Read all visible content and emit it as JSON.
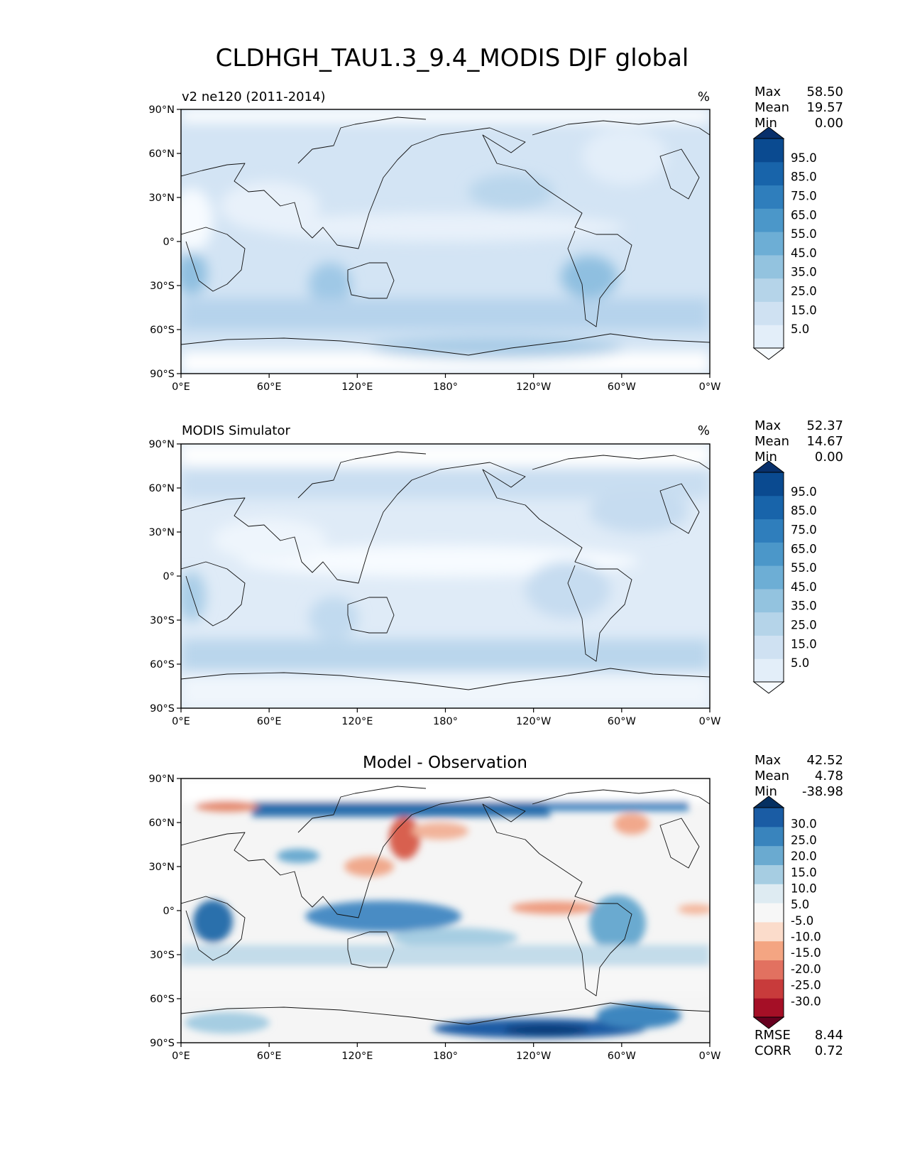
{
  "figure": {
    "title": "CLDHGH_TAU1.3_9.4_MODIS DJF global"
  },
  "axes": {
    "lon_ticks": [
      "0°E",
      "60°E",
      "120°E",
      "180°",
      "120°W",
      "60°W",
      "0°W"
    ],
    "lat_ticks": [
      "90°N",
      "60°N",
      "30°N",
      "0°",
      "30°S",
      "60°S",
      "90°S"
    ]
  },
  "panels": [
    {
      "id": "test",
      "title_left": "v2 ne120 (2011-2014)",
      "title_center": "",
      "units": "%",
      "stats": [
        {
          "label": "Max",
          "value": "58.50"
        },
        {
          "label": "Mean",
          "value": "19.57"
        },
        {
          "label": "Min",
          "value": "0.00"
        }
      ],
      "colorbar": {
        "extend": "both",
        "colors": [
          "#f7fbff",
          "#e3eef9",
          "#cfe1f2",
          "#b5d4e9",
          "#93c3df",
          "#6daed5",
          "#4b97c9",
          "#2f7ebc",
          "#1864aa",
          "#0a4a90",
          "#08306b"
        ],
        "labels": [
          "5.0",
          "15.0",
          "25.0",
          "35.0",
          "45.0",
          "55.0",
          "65.0",
          "75.0",
          "85.0",
          "95.0"
        ]
      },
      "footer_stats": []
    },
    {
      "id": "reference",
      "title_left": "MODIS Simulator",
      "title_center": "",
      "units": "%",
      "stats": [
        {
          "label": "Max",
          "value": "52.37"
        },
        {
          "label": "Mean",
          "value": "14.67"
        },
        {
          "label": "Min",
          "value": "0.00"
        }
      ],
      "colorbar": {
        "extend": "both",
        "colors": [
          "#f7fbff",
          "#e3eef9",
          "#cfe1f2",
          "#b5d4e9",
          "#93c3df",
          "#6daed5",
          "#4b97c9",
          "#2f7ebc",
          "#1864aa",
          "#0a4a90",
          "#08306b"
        ],
        "labels": [
          "5.0",
          "15.0",
          "25.0",
          "35.0",
          "45.0",
          "55.0",
          "65.0",
          "75.0",
          "85.0",
          "95.0"
        ]
      },
      "footer_stats": []
    },
    {
      "id": "difference",
      "title_left": "",
      "title_center": "Model - Observation",
      "units": "",
      "stats": [
        {
          "label": "Max",
          "value": "42.52"
        },
        {
          "label": "Mean",
          "value": "4.78"
        },
        {
          "label": "Min",
          "value": "-38.98"
        }
      ],
      "colorbar": {
        "extend": "both",
        "colors": [
          "#67001f",
          "#a50f26",
          "#c83b3b",
          "#e27160",
          "#f4a582",
          "#fbdccb",
          "#f7f7f7",
          "#deebf2",
          "#a6cde2",
          "#6aaad0",
          "#3984bd",
          "#1a5ca4",
          "#053061"
        ],
        "labels": [
          "-30.0",
          "-25.0",
          "-20.0",
          "-15.0",
          "-10.0",
          "-5.0",
          "5.0",
          "10.0",
          "15.0",
          "20.0",
          "25.0",
          "30.0"
        ]
      },
      "footer_stats": [
        {
          "label": "RMSE",
          "value": "8.44"
        },
        {
          "label": "CORR",
          "value": "0.72"
        }
      ]
    }
  ]
}
